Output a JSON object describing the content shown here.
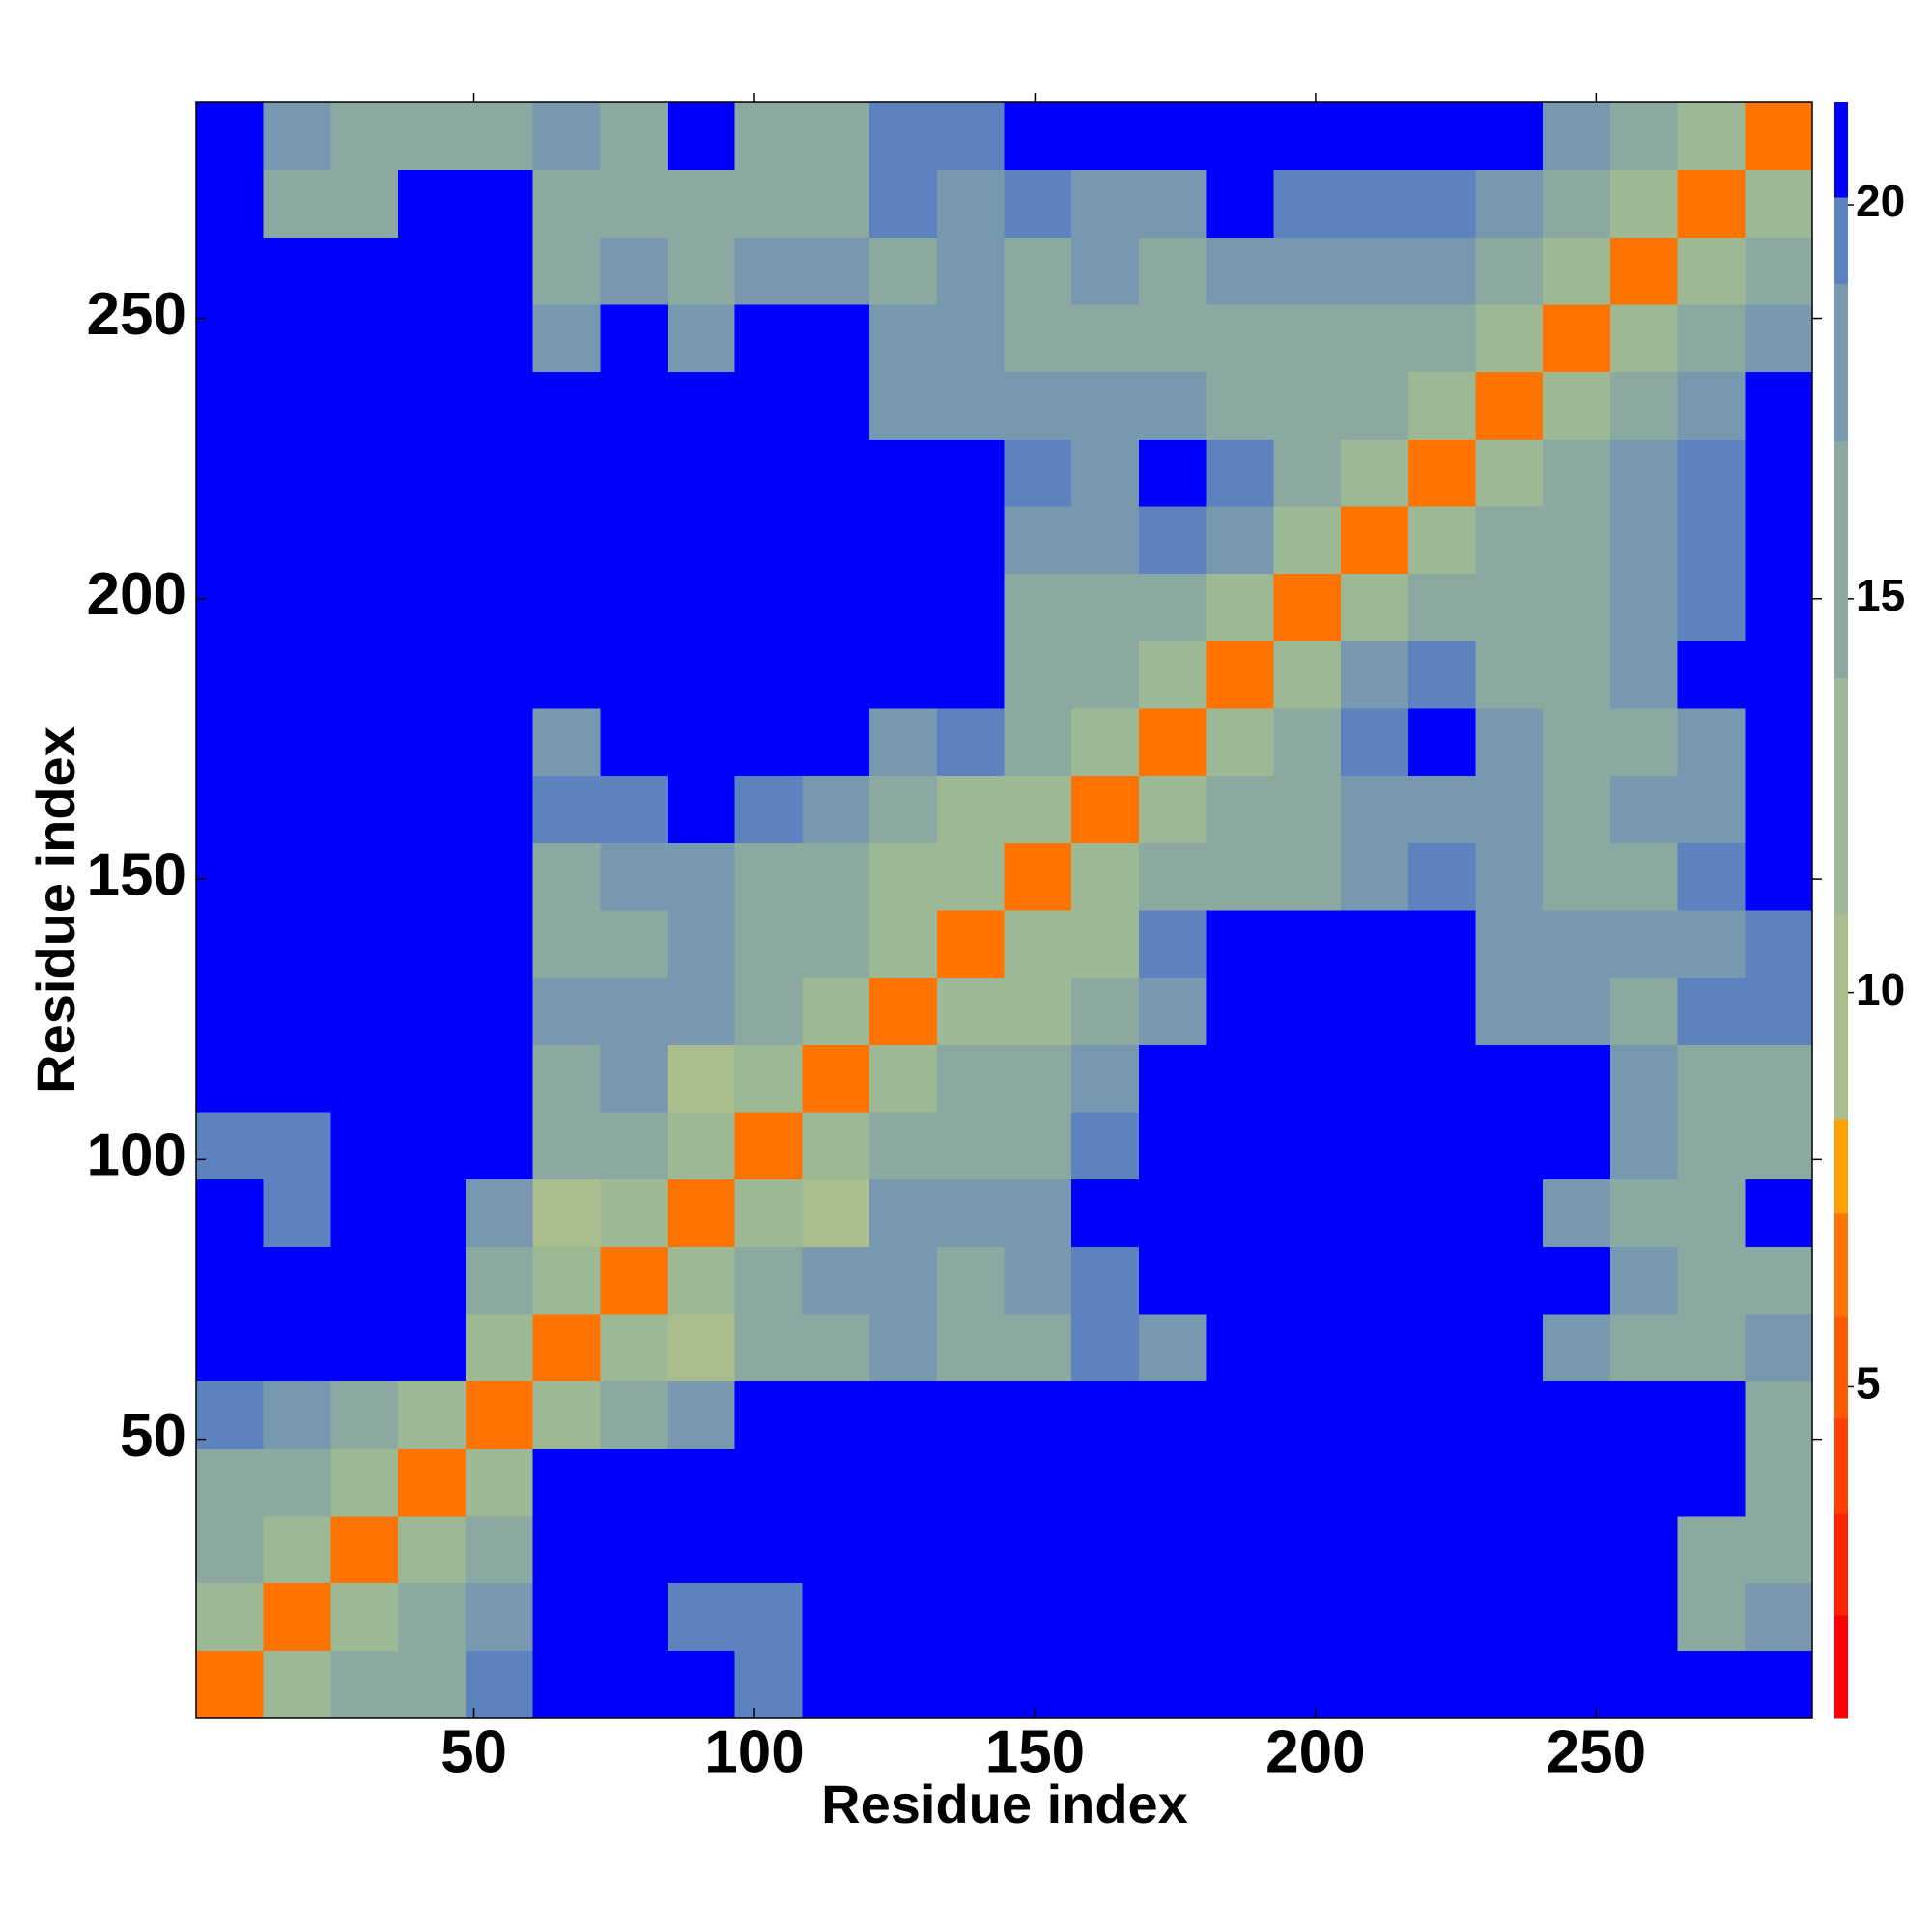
{
  "chart_data": {
    "type": "heatmap",
    "xlabel": "Residue index",
    "ylabel": "Residue index",
    "x_bins": [
      0.5,
      12.5,
      24.5,
      36.5,
      48.5,
      60.5,
      72.5,
      84.5,
      96.5,
      108.5,
      120.5,
      132.5,
      144.5,
      156.5,
      168.5,
      180.5,
      192.5,
      204.5,
      216.5,
      228.5,
      240.5,
      252.5,
      264.5,
      276.5,
      288.5
    ],
    "y_bins": [
      0.5,
      12.5,
      24.5,
      36.5,
      48.5,
      60.5,
      72.5,
      84.5,
      96.5,
      108.5,
      120.5,
      132.5,
      144.5,
      156.5,
      168.5,
      180.5,
      192.5,
      204.5,
      216.5,
      228.5,
      240.5,
      252.5,
      264.5,
      276.5,
      288.5
    ],
    "xlim": [
      0.5,
      288.5
    ],
    "ylim": [
      0.5,
      288.5
    ],
    "xticks": [
      50,
      100,
      150,
      200,
      250
    ],
    "yticks": [
      50,
      100,
      150,
      200,
      250
    ],
    "zlim": [
      0.8,
      21.3
    ],
    "zticks": [
      5,
      10,
      15,
      20
    ],
    "levels": [
      {
        "value": 0.8,
        "color": "#ff0000"
      },
      {
        "value": 2.1,
        "color": "#ff2200"
      },
      {
        "value": 3.4,
        "color": "#ff4000"
      },
      {
        "value": 4.6,
        "color": "#ff5a00"
      },
      {
        "value": 5.9,
        "color": "#ff7400"
      },
      {
        "value": 7.2,
        "color": "#ffa200"
      },
      {
        "value": 8.4,
        "color": "#a9bd8d"
      },
      {
        "value": 11,
        "color": "#9db895"
      },
      {
        "value": 14,
        "color": "#8ba9a1"
      },
      {
        "value": 17,
        "color": "#7898b0"
      },
      {
        "value": 19,
        "color": "#5c82c0"
      },
      {
        "value": 20.1,
        "color": "#0000ff"
      }
    ],
    "z": [
      [
        6,
        13,
        15,
        16,
        19,
        21,
        21,
        21,
        19,
        21,
        21,
        21,
        21,
        21,
        21,
        21,
        21,
        21,
        21,
        21,
        21,
        21,
        21,
        21
      ],
      [
        13,
        6,
        13,
        15,
        17,
        21,
        21,
        19,
        19,
        21,
        21,
        21,
        21,
        21,
        21,
        21,
        21,
        21,
        21,
        21,
        21,
        21,
        15,
        18
      ],
      [
        15,
        13,
        6,
        13,
        15,
        21,
        21,
        21,
        21,
        21,
        21,
        21,
        21,
        21,
        21,
        21,
        21,
        21,
        21,
        21,
        21,
        21,
        16,
        16
      ],
      [
        16,
        15,
        13,
        6,
        13,
        21,
        21,
        21,
        21,
        21,
        21,
        21,
        21,
        21,
        21,
        21,
        21,
        21,
        21,
        21,
        21,
        21,
        21,
        15
      ],
      [
        19,
        17,
        15,
        13,
        6,
        13,
        16,
        17,
        21,
        21,
        21,
        21,
        21,
        21,
        21,
        21,
        21,
        21,
        21,
        21,
        21,
        21,
        21,
        16
      ],
      [
        21,
        21,
        21,
        21,
        13,
        6,
        13,
        9,
        15,
        16,
        17,
        15,
        16,
        19,
        18,
        21,
        21,
        21,
        21,
        21,
        17,
        16,
        15,
        17
      ],
      [
        21,
        21,
        21,
        21,
        16,
        13,
        6,
        13,
        15,
        18,
        17,
        16,
        17,
        19,
        21,
        21,
        21,
        21,
        21,
        21,
        21,
        17,
        15,
        15
      ],
      [
        21,
        19,
        21,
        21,
        17,
        9,
        13,
        6,
        13,
        9,
        18,
        17,
        17,
        21,
        21,
        21,
        21,
        21,
        21,
        21,
        18,
        16,
        14,
        21
      ],
      [
        19,
        19,
        21,
        21,
        21,
        15,
        15,
        13,
        6,
        13,
        15,
        16,
        15,
        19,
        21,
        21,
        21,
        21,
        21,
        21,
        21,
        17,
        15,
        16
      ],
      [
        21,
        21,
        21,
        21,
        21,
        16,
        18,
        9,
        13,
        6,
        13,
        14,
        15,
        17,
        21,
        21,
        21,
        21,
        21,
        21,
        21,
        17,
        16,
        16
      ],
      [
        21,
        21,
        21,
        21,
        21,
        17,
        17,
        18,
        15,
        13,
        6,
        13,
        11,
        14,
        17,
        21,
        21,
        21,
        21,
        17,
        17,
        16,
        19,
        19
      ],
      [
        21,
        21,
        21,
        21,
        21,
        15,
        16,
        17,
        16,
        14,
        13,
        6,
        13,
        12,
        19,
        21,
        21,
        21,
        21,
        18,
        18,
        17,
        18,
        19
      ],
      [
        21,
        21,
        21,
        21,
        21,
        16,
        17,
        17,
        15,
        15,
        11,
        13,
        6,
        13,
        14,
        15,
        16,
        18,
        19,
        17,
        15,
        16,
        19,
        21
      ],
      [
        21,
        21,
        21,
        21,
        21,
        19,
        19,
        21,
        19,
        17,
        14,
        12,
        13,
        6,
        13,
        15,
        14,
        17,
        18,
        17,
        16,
        17,
        18,
        21
      ],
      [
        21,
        21,
        21,
        21,
        21,
        18,
        21,
        21,
        21,
        21,
        17,
        19,
        14,
        13,
        6,
        13,
        15,
        19,
        21,
        17,
        15,
        16,
        18,
        21
      ],
      [
        21,
        21,
        21,
        21,
        21,
        21,
        21,
        21,
        21,
        21,
        21,
        21,
        15,
        15,
        13,
        6,
        13,
        17,
        19,
        15,
        16,
        17,
        21,
        21
      ],
      [
        21,
        21,
        21,
        21,
        21,
        21,
        21,
        21,
        21,
        21,
        21,
        21,
        16,
        14,
        15,
        13,
        6,
        13,
        16,
        15,
        16,
        18,
        19,
        21
      ],
      [
        21,
        21,
        21,
        21,
        21,
        21,
        21,
        21,
        21,
        21,
        21,
        21,
        18,
        17,
        19,
        17,
        13,
        6,
        13,
        14,
        15,
        17,
        19,
        21
      ],
      [
        21,
        21,
        21,
        21,
        21,
        21,
        21,
        21,
        21,
        21,
        21,
        21,
        19,
        18,
        21,
        19,
        16,
        13,
        6,
        13,
        14,
        17,
        19,
        21
      ],
      [
        21,
        21,
        21,
        21,
        21,
        21,
        21,
        21,
        21,
        21,
        17,
        18,
        17,
        17,
        17,
        15,
        15,
        14,
        13,
        6,
        13,
        15,
        17,
        21
      ],
      [
        21,
        21,
        21,
        21,
        21,
        17,
        21,
        18,
        21,
        21,
        17,
        18,
        15,
        16,
        15,
        16,
        16,
        15,
        14,
        13,
        6,
        13,
        15,
        17
      ],
      [
        21,
        21,
        21,
        21,
        21,
        16,
        17,
        16,
        17,
        17,
        16,
        17,
        16,
        17,
        16,
        17,
        18,
        17,
        17,
        15,
        13,
        6,
        13,
        15
      ],
      [
        21,
        15,
        16,
        21,
        21,
        15,
        15,
        14,
        15,
        16,
        19,
        18,
        19,
        18,
        18,
        21,
        19,
        19,
        19,
        17,
        15,
        13,
        6,
        13
      ],
      [
        21,
        18,
        16,
        15,
        16,
        17,
        15,
        21,
        16,
        16,
        19,
        19,
        21,
        21,
        21,
        21,
        21,
        21,
        21,
        21,
        17,
        15,
        13,
        6
      ]
    ]
  }
}
